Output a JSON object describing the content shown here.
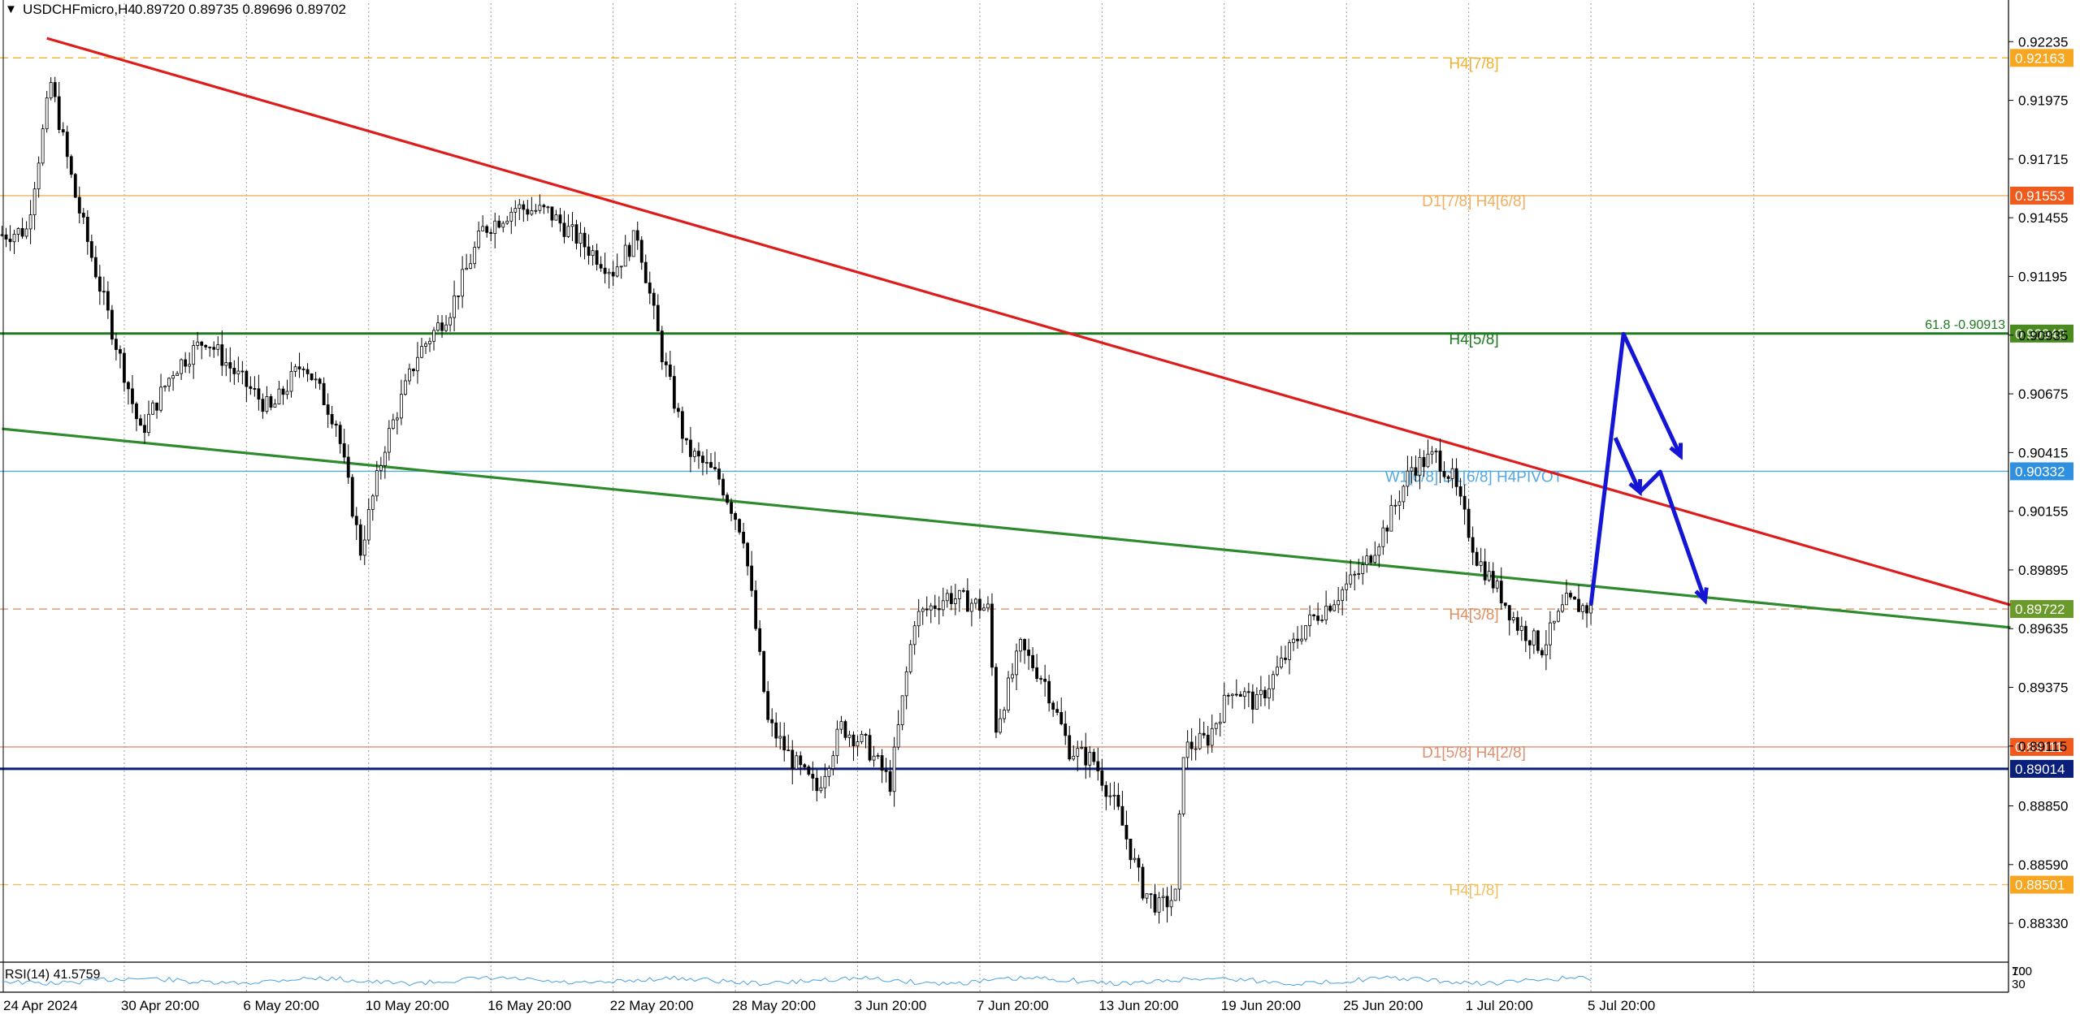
{
  "header": {
    "caret": "▼",
    "symbol_tf": "USDCHFmicro,H4",
    "ohlc": "0.89720 0.89735 0.89696 0.89702"
  },
  "chart_data": {
    "type": "candlestick",
    "symbol": "USDCHFmicro",
    "timeframe": "H4",
    "ylim": [
      0.88165,
      0.92405
    ],
    "x_tick_labels": [
      "24 Apr 2024",
      "30 Apr 20:00",
      "6 May 20:00",
      "10 May 20:00",
      "16 May 20:00",
      "22 May 20:00",
      "28 May 20:00",
      "3 Jun 20:00",
      "7 Jun 20:00",
      "13 Jun 20:00",
      "19 Jun 20:00",
      "25 Jun 20:00",
      "1 Jul 20:00",
      "5 Jul 20:00"
    ],
    "y_tick_labels": [
      "0.92235",
      "0.91975",
      "0.91715",
      "0.91455",
      "0.91195",
      "0.90935",
      "0.90675",
      "0.90415",
      "0.90155",
      "0.89895",
      "0.89635",
      "0.89375",
      "0.89115",
      "0.88850",
      "0.88590",
      "0.88330"
    ],
    "grid": true,
    "close_path": [
      [
        0,
        0.9138
      ],
      [
        6,
        0.914
      ],
      [
        12,
        0.9205
      ],
      [
        18,
        0.9155
      ],
      [
        24,
        0.9115
      ],
      [
        30,
        0.9077
      ],
      [
        34,
        0.905
      ],
      [
        42,
        0.9078
      ],
      [
        50,
        0.9092
      ],
      [
        58,
        0.9075
      ],
      [
        66,
        0.906
      ],
      [
        74,
        0.9082
      ],
      [
        82,
        0.9055
      ],
      [
        88,
        0.8998
      ],
      [
        94,
        0.9045
      ],
      [
        102,
        0.9085
      ],
      [
        110,
        0.9105
      ],
      [
        118,
        0.914
      ],
      [
        126,
        0.915
      ],
      [
        134,
        0.9148
      ],
      [
        142,
        0.9135
      ],
      [
        150,
        0.9122
      ],
      [
        156,
        0.9138
      ],
      [
        162,
        0.9085
      ],
      [
        168,
        0.9043
      ],
      [
        176,
        0.903
      ],
      [
        182,
        0.9005
      ],
      [
        188,
        0.8922
      ],
      [
        194,
        0.8905
      ],
      [
        200,
        0.8892
      ],
      [
        206,
        0.892
      ],
      [
        212,
        0.8912
      ],
      [
        218,
        0.8895
      ],
      [
        224,
        0.8968
      ],
      [
        232,
        0.8978
      ],
      [
        238,
        0.8975
      ],
      [
        242,
        0.8972
      ],
      [
        244,
        0.892
      ],
      [
        250,
        0.8955
      ],
      [
        256,
        0.894
      ],
      [
        262,
        0.891
      ],
      [
        268,
        0.8905
      ],
      [
        274,
        0.8882
      ],
      [
        280,
        0.8848
      ],
      [
        284,
        0.884
      ],
      [
        288,
        0.8845
      ],
      [
        290,
        0.891
      ],
      [
        296,
        0.8915
      ],
      [
        302,
        0.8938
      ],
      [
        308,
        0.893
      ],
      [
        314,
        0.8948
      ],
      [
        320,
        0.8965
      ],
      [
        326,
        0.8975
      ],
      [
        334,
        0.899
      ],
      [
        340,
        0.901
      ],
      [
        346,
        0.9035
      ],
      [
        352,
        0.904
      ],
      [
        356,
        0.903
      ],
      [
        362,
        0.8995
      ],
      [
        368,
        0.8978
      ],
      [
        372,
        0.8965
      ],
      [
        378,
        0.8955
      ],
      [
        384,
        0.8975
      ],
      [
        390,
        0.8972
      ]
    ],
    "trendlines": [
      {
        "name": "falling-resistance",
        "color": "#dd1c1c",
        "from": [
          11,
          0.9225
        ],
        "to": [
          493,
          0.8974
        ]
      },
      {
        "name": "falling-support",
        "color": "#2d8a2d",
        "from": [
          0,
          0.9052
        ],
        "to": [
          493,
          0.8964
        ]
      }
    ],
    "levels": [
      {
        "price": 0.92163,
        "color": "#f0b030",
        "dash": true,
        "label": "H4[7/8]",
        "tag": "0.92163",
        "tag_bg": "#f7a622"
      },
      {
        "price": 0.91553,
        "color": "#f0b060",
        "dash": false,
        "label": "D1[7/8] H4[6/8]",
        "tag": "0.91553",
        "tag_bg": "#f05a1c"
      },
      {
        "price": 0.90942,
        "color": "#1f7a1f",
        "dash": false,
        "label": "H4[5/8]",
        "tag": "0.90942",
        "tag_bg": "#4b8a1e",
        "extra": "61.8 -0.90913"
      },
      {
        "price": 0.90332,
        "color": "#55a8e0",
        "dash": false,
        "label": "W1[6/8] D1[6/8] H4PIVOT",
        "tag": "0.90332",
        "tag_bg": "#2f90e0"
      },
      {
        "price": 0.89722,
        "color": "#e09060",
        "dash": true,
        "label": "H4[3/8]",
        "tag": "0.89722",
        "tag_bg": "#6a9a2a"
      },
      {
        "price": 0.89111,
        "color": "#e09070",
        "dash": false,
        "label": "D1[5/8] H4[2/8]",
        "tag": "0.89111",
        "tag_bg": "#f05a1c"
      },
      {
        "price": 0.89014,
        "color": "#0a1f7a",
        "dash": false,
        "label": "",
        "tag": "0.89014",
        "tag_bg": "#0a1f7a"
      },
      {
        "price": 0.88501,
        "color": "#f0c060",
        "dash": true,
        "label": "H4[1/8]",
        "tag": "0.88501",
        "tag_bg": "#f7a622"
      }
    ],
    "projection": {
      "color": "#1515d6",
      "path_a": [
        [
          390,
          0.8974
        ],
        [
          398,
          0.9094
        ],
        [
          412,
          0.904
        ]
      ],
      "path_b": [
        [
          396,
          0.9048
        ],
        [
          402,
          0.9024
        ],
        [
          407,
          0.9033
        ],
        [
          418,
          0.8976
        ]
      ]
    },
    "rsi": {
      "label": "RSI(14) 41.5759",
      "levels": [
        "70",
        "30"
      ],
      "extra": "100"
    }
  }
}
